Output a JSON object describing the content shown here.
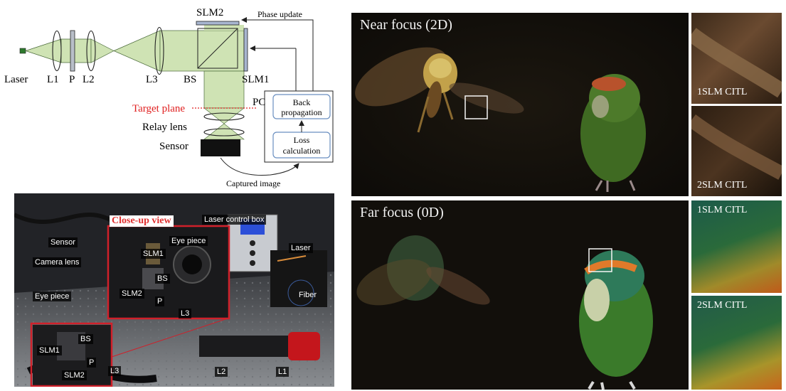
{
  "schematic": {
    "labels": {
      "laser": "Laser",
      "l1": "L1",
      "p": "P",
      "l2": "L2",
      "l3": "L3",
      "bs": "BS",
      "slm1": "SLM1",
      "slm2": "SLM2",
      "phase_update": "Phase update",
      "pc": "PC",
      "back_propagation_1": "Back",
      "back_propagation_2": "propagation",
      "loss_calculation_1": "Loss",
      "loss_calculation_2": "calculation",
      "target_plane": "Target plane",
      "relay_lens": "Relay lens",
      "sensor": "Sensor",
      "captured_image": "Captured image"
    },
    "colors": {
      "beam": "#cfe3b4",
      "target_plane": "#e02020",
      "pc_box_border": "#6a8fc0"
    }
  },
  "photo": {
    "labels": {
      "close_up_view": "Close-up view",
      "laser_control_box": "Laser control box",
      "sensor": "Sensor",
      "camera_lens": "Camera lens",
      "eye_piece_left": "Eye piece",
      "eye_piece_inset": "Eye piece",
      "slm1_inset": "SLM1",
      "bs_inset": "BS",
      "slm2_inset": "SLM2",
      "p_inset": "P",
      "l3_inset": "L3",
      "laser": "Laser",
      "fiber": "Fiber",
      "slm1_bottom": "SLM1",
      "bs_bottom": "BS",
      "p_bottom": "P",
      "slm2_bottom": "SLM2",
      "l3_bottom": "L3",
      "l2": "L2",
      "l1": "L1"
    },
    "colors": {
      "highlight": "#d0202a"
    }
  },
  "results": {
    "near": {
      "title": "Near focus (2D)",
      "inset_top_label": "1SLM CITL",
      "inset_bottom_label": "2SLM CITL"
    },
    "far": {
      "title": "Far focus (0D)",
      "inset_top_label": "1SLM CITL",
      "inset_bottom_label": "2SLM CITL"
    }
  }
}
